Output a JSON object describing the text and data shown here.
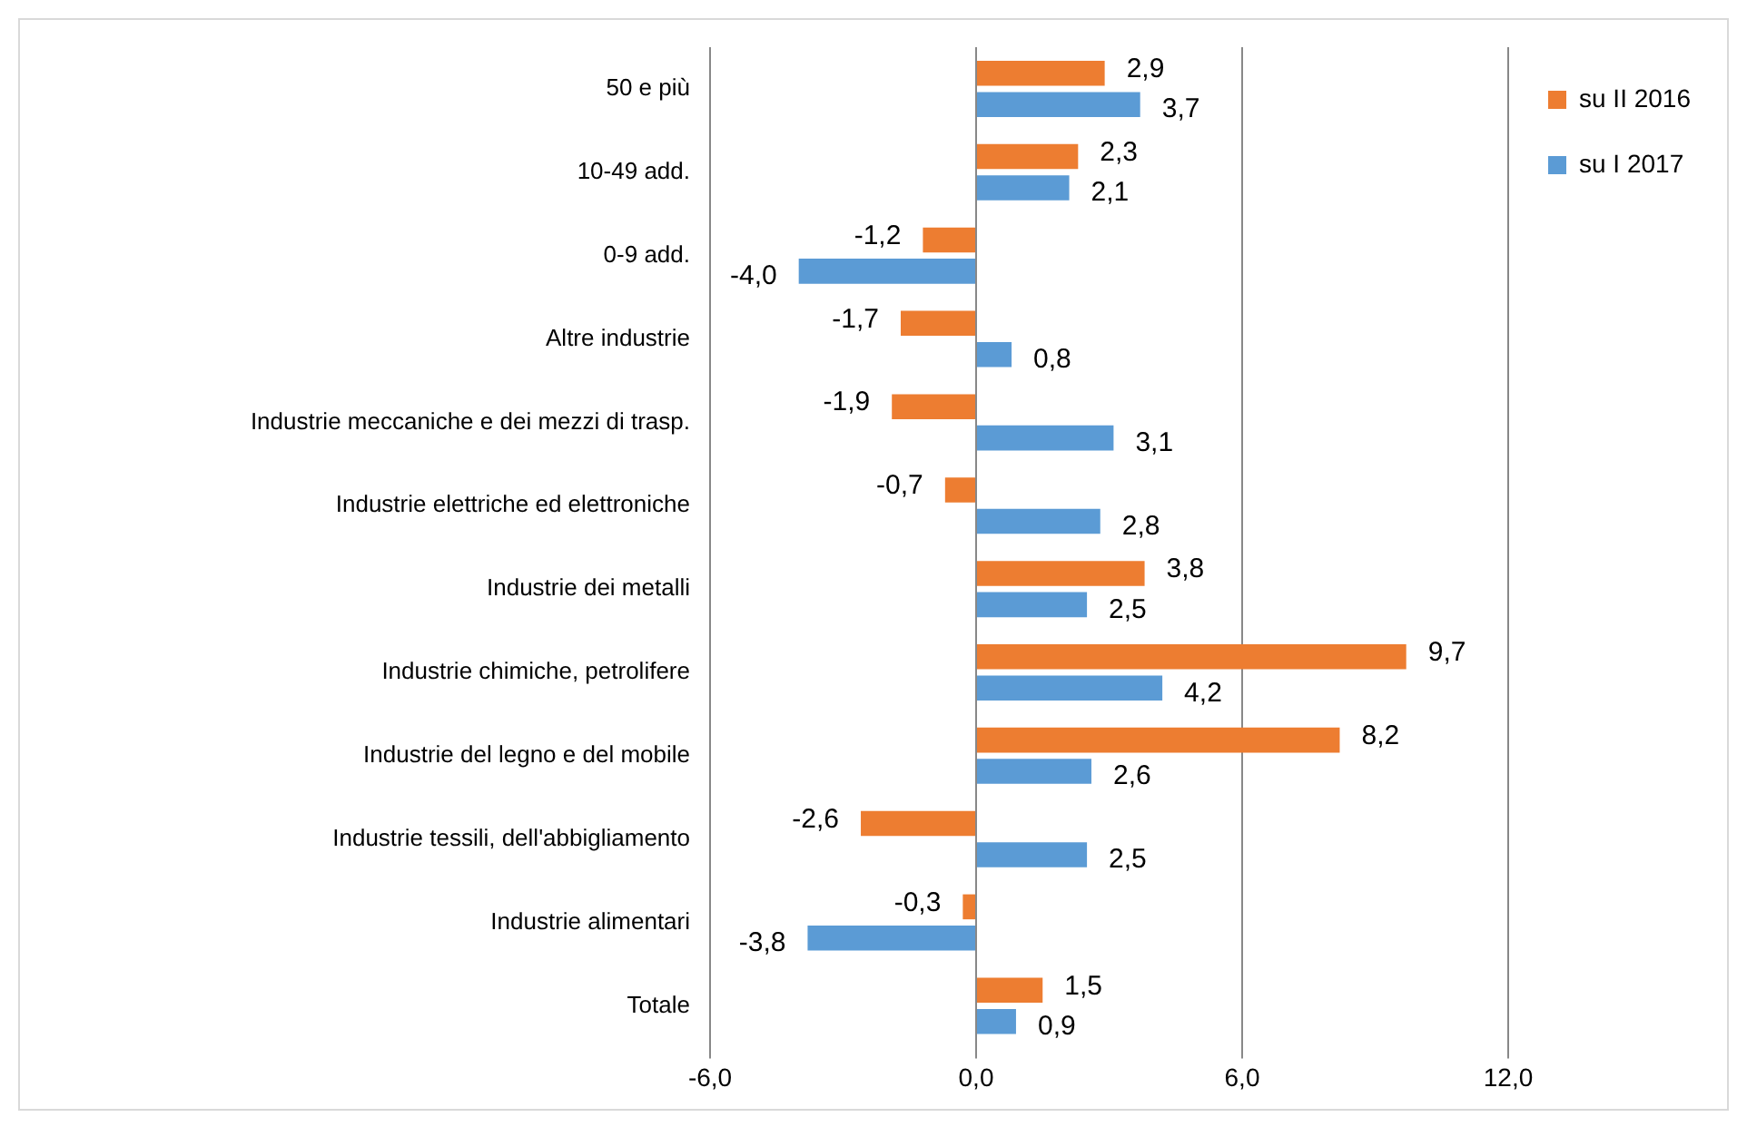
{
  "chart_data": {
    "type": "bar",
    "orientation": "horizontal",
    "categories": [
      "50 e più",
      "10-49 add.",
      "0-9 add.",
      "Altre industrie",
      "Industrie meccaniche e dei mezzi di trasp.",
      "Industrie elettriche ed elettroniche",
      "Industrie dei metalli",
      "Industrie chimiche, petrolifere",
      "Industrie del legno e del mobile",
      "Industrie tessili, dell'abbigliamento",
      "Industrie alimentari",
      "Totale"
    ],
    "series": [
      {
        "name": "su II 2016",
        "color": "#ed7d31",
        "values": [
          2.9,
          2.3,
          -1.2,
          -1.7,
          -1.9,
          -0.7,
          3.8,
          9.7,
          8.2,
          -2.6,
          -0.3,
          1.5
        ],
        "value_labels": [
          "2,9",
          "2,3",
          "-1,2",
          "-1,7",
          "-1,9",
          "-0,7",
          "3,8",
          "9,7",
          "8,2",
          "-2,6",
          "-0,3",
          "1,5"
        ]
      },
      {
        "name": "su I 2017",
        "color": "#5b9bd5",
        "values": [
          3.7,
          2.1,
          -4.0,
          0.8,
          3.1,
          2.8,
          2.5,
          4.2,
          2.6,
          2.5,
          -3.8,
          0.9
        ],
        "value_labels": [
          "3,7",
          "2,1",
          "-4,0",
          "0,8",
          "3,1",
          "2,8",
          "2,5",
          "4,2",
          "2,6",
          "2,5",
          "-3,8",
          "0,9"
        ]
      }
    ],
    "xlim": [
      -6,
      12
    ],
    "xticks": [
      {
        "value": -6,
        "label": "-6,0"
      },
      {
        "value": 0,
        "label": "0,0"
      },
      {
        "value": 6,
        "label": "6,0"
      },
      {
        "value": 12,
        "label": "12,0"
      }
    ],
    "grid": "x",
    "legend": "right"
  }
}
